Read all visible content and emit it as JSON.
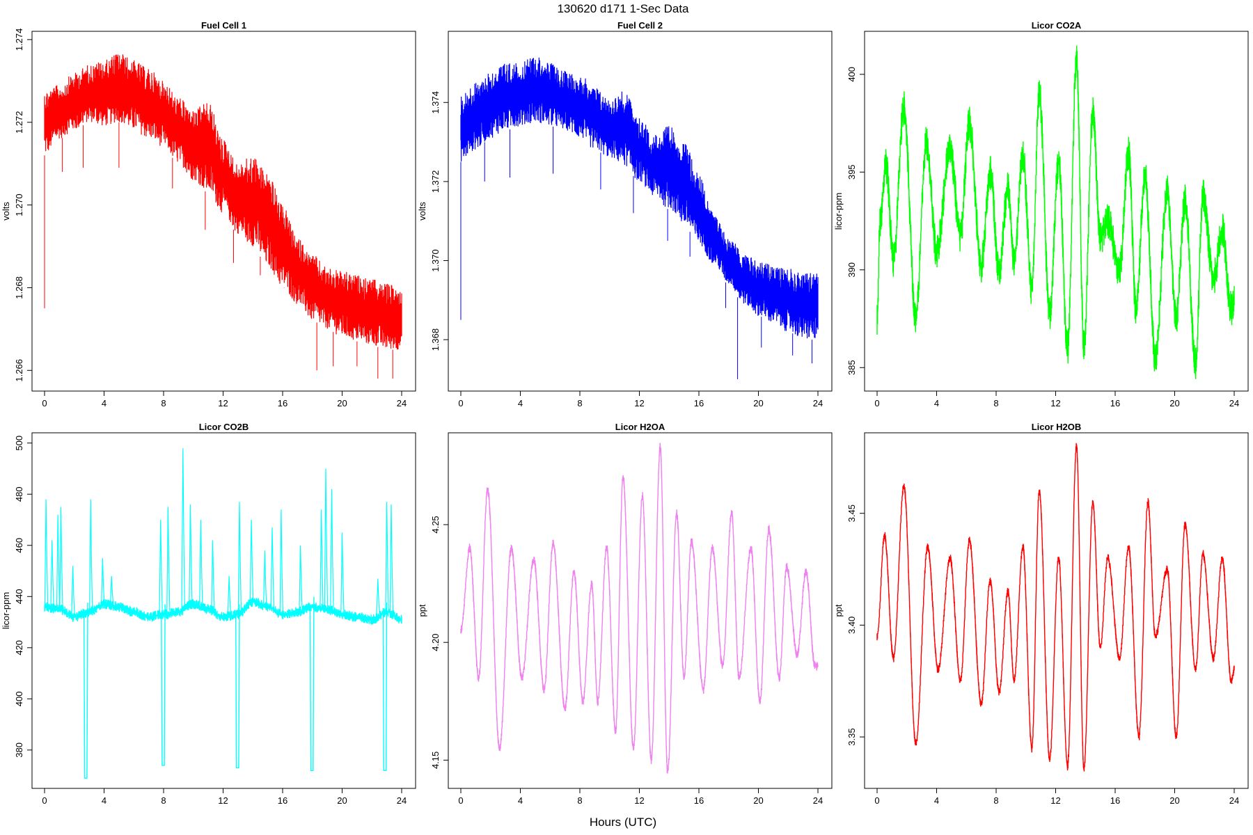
{
  "figure": {
    "title": "130620   d171   1-Sec Data",
    "xlabel": "Hours (UTC)"
  },
  "chart_data": [
    {
      "type": "line",
      "title": "Fuel Cell 1",
      "xlabel": "Hours (UTC)",
      "ylabel": "volts",
      "color": "#ff0000",
      "xlim": [
        0,
        24
      ],
      "ylim": [
        1.2655,
        1.2742
      ],
      "xticks": [
        0,
        4,
        8,
        12,
        16,
        20,
        24
      ],
      "yticks": [
        1.266,
        1.268,
        1.27,
        1.272,
        1.274
      ],
      "ytick_labels": [
        "1.266",
        "1.268",
        "1.270",
        "1.272",
        "1.274"
      ],
      "x": [
        0,
        1,
        2,
        3,
        4,
        5,
        6,
        7,
        8,
        9,
        10,
        11,
        12,
        13,
        14,
        15,
        16,
        17,
        18,
        19,
        20,
        21,
        22,
        23,
        24
      ],
      "y_low": [
        1.2712,
        1.2716,
        1.2718,
        1.272,
        1.2719,
        1.272,
        1.2718,
        1.2716,
        1.2714,
        1.271,
        1.2706,
        1.2703,
        1.2698,
        1.2693,
        1.269,
        1.2685,
        1.268,
        1.2676,
        1.2672,
        1.267,
        1.2668,
        1.2667,
        1.2666,
        1.2665,
        1.2665
      ],
      "y_high": [
        1.2728,
        1.2729,
        1.2732,
        1.2734,
        1.2735,
        1.2737,
        1.2735,
        1.2733,
        1.273,
        1.2726,
        1.2723,
        1.2725,
        1.2716,
        1.271,
        1.2712,
        1.2708,
        1.27,
        1.2692,
        1.2688,
        1.2685,
        1.2684,
        1.2683,
        1.2682,
        1.2681,
        1.268
      ],
      "spikes": [
        [
          0.0,
          1.2675
        ],
        [
          1.2,
          1.2708
        ],
        [
          2.6,
          1.2709
        ],
        [
          5.0,
          1.2709
        ],
        [
          8.6,
          1.2704
        ],
        [
          10.8,
          1.2694
        ],
        [
          12.7,
          1.2686
        ],
        [
          14.5,
          1.2683
        ],
        [
          16.1,
          1.268
        ],
        [
          18.3,
          1.266
        ],
        [
          19.4,
          1.2661
        ],
        [
          21.0,
          1.2661
        ],
        [
          22.4,
          1.2658
        ],
        [
          23.4,
          1.2658
        ]
      ]
    },
    {
      "type": "line",
      "title": "Fuel Cell 2",
      "xlabel": "Hours (UTC)",
      "ylabel": "volts",
      "color": "#0000ff",
      "xlim": [
        0,
        24
      ],
      "ylim": [
        1.3667,
        1.3758
      ],
      "xticks": [
        0,
        4,
        8,
        12,
        16,
        20,
        24
      ],
      "yticks": [
        1.368,
        1.37,
        1.372,
        1.374
      ],
      "ytick_labels": [
        "1.368",
        "1.370",
        "1.372",
        "1.374"
      ],
      "x": [
        0,
        1,
        2,
        3,
        4,
        5,
        6,
        7,
        8,
        9,
        10,
        11,
        12,
        13,
        14,
        15,
        16,
        17,
        18,
        19,
        20,
        21,
        22,
        23,
        24
      ],
      "y_low": [
        1.3725,
        1.3728,
        1.3731,
        1.3733,
        1.3734,
        1.3735,
        1.3734,
        1.3733,
        1.3731,
        1.3728,
        1.3726,
        1.3724,
        1.372,
        1.3716,
        1.3713,
        1.3709,
        1.3704,
        1.3699,
        1.3694,
        1.3689,
        1.3686,
        1.3684,
        1.3682,
        1.368,
        1.368
      ],
      "y_high": [
        1.3742,
        1.3745,
        1.3748,
        1.375,
        1.375,
        1.3752,
        1.375,
        1.3748,
        1.3747,
        1.3744,
        1.3741,
        1.3743,
        1.3736,
        1.3732,
        1.3734,
        1.373,
        1.3722,
        1.3712,
        1.3706,
        1.3702,
        1.37,
        1.3699,
        1.3698,
        1.3697,
        1.3697
      ],
      "spikes": [
        [
          0.0,
          1.3685
        ],
        [
          1.6,
          1.372
        ],
        [
          3.3,
          1.3721
        ],
        [
          6.2,
          1.3722
        ],
        [
          9.4,
          1.3718
        ],
        [
          11.6,
          1.3712
        ],
        [
          13.9,
          1.3705
        ],
        [
          15.4,
          1.3701
        ],
        [
          17.8,
          1.3688
        ],
        [
          18.6,
          1.367
        ],
        [
          20.2,
          1.3678
        ],
        [
          22.3,
          1.3676
        ],
        [
          23.6,
          1.3674
        ]
      ]
    },
    {
      "type": "line",
      "title": "Licor CO2A",
      "xlabel": "Hours (UTC)",
      "ylabel": "licor-ppm",
      "color": "#00ff00",
      "xlim": [
        0,
        24
      ],
      "ylim": [
        383.8,
        402.2
      ],
      "xticks": [
        0,
        4,
        8,
        12,
        16,
        20,
        24
      ],
      "yticks": [
        385,
        390,
        395,
        400
      ],
      "ytick_labels": [
        "385",
        "390",
        "395",
        "400"
      ],
      "x": [
        0,
        0.2,
        0.6,
        1.1,
        1.8,
        2.6,
        3.3,
        4.0,
        4.9,
        5.6,
        6.2,
        7.0,
        7.6,
        8.2,
        8.8,
        9.2,
        9.8,
        10.4,
        10.9,
        11.6,
        12.2,
        12.8,
        13.4,
        13.9,
        14.5,
        15.0,
        15.5,
        16.3,
        16.9,
        17.4,
        18.0,
        18.7,
        19.5,
        20.1,
        20.7,
        21.4,
        21.9,
        22.6,
        23.2,
        23.8,
        24.0
      ],
      "y": [
        387.5,
        392.5,
        395.3,
        390.5,
        398.3,
        387.5,
        396.5,
        391.0,
        396.2,
        391.8,
        397.5,
        390.2,
        395.0,
        390.0,
        394.2,
        390.5,
        395.8,
        389.0,
        399.0,
        387.8,
        395.5,
        386.0,
        400.8,
        386.2,
        398.0,
        391.5,
        392.5,
        390.0,
        396.0,
        388.0,
        394.8,
        385.5,
        394.0,
        387.5,
        393.5,
        385.2,
        393.8,
        389.5,
        392.0,
        388.0,
        388.5
      ],
      "noise": 0.9
    },
    {
      "type": "line",
      "title": "Licor CO2B",
      "xlabel": "Hours (UTC)",
      "ylabel": "licor-ppm",
      "color": "#00ffff",
      "xlim": [
        0,
        24
      ],
      "ylim": [
        365,
        504
      ],
      "xticks": [
        0,
        4,
        8,
        12,
        16,
        20,
        24
      ],
      "yticks": [
        380,
        400,
        420,
        440,
        460,
        480,
        500
      ],
      "ytick_labels": [
        "380",
        "400",
        "420",
        "440",
        "460",
        "480",
        "500"
      ],
      "baseline_x": [
        0,
        1,
        2,
        3,
        4,
        5,
        6,
        7,
        8,
        9,
        10,
        11,
        12,
        13,
        14,
        15,
        16,
        17,
        18,
        19,
        20,
        21,
        22,
        23,
        24
      ],
      "baseline_y": [
        436,
        435,
        432,
        434,
        437,
        436,
        434,
        432,
        433,
        434,
        437,
        435,
        432,
        433,
        438,
        436,
        433,
        434,
        436,
        435,
        433,
        432,
        431,
        434,
        431
      ],
      "spikes": [
        [
          0.1,
          478
        ],
        [
          0.5,
          462
        ],
        [
          0.9,
          472
        ],
        [
          1.1,
          475
        ],
        [
          1.9,
          452
        ],
        [
          3.1,
          478
        ],
        [
          3.9,
          455
        ],
        [
          4.5,
          448
        ],
        [
          7.8,
          470
        ],
        [
          8.3,
          475
        ],
        [
          9.3,
          498
        ],
        [
          9.8,
          476
        ],
        [
          10.5,
          470
        ],
        [
          11.3,
          462
        ],
        [
          12.4,
          448
        ],
        [
          13.1,
          477
        ],
        [
          13.9,
          470
        ],
        [
          14.8,
          458
        ],
        [
          15.3,
          467
        ],
        [
          15.9,
          474
        ],
        [
          17.2,
          460
        ],
        [
          18.6,
          474
        ],
        [
          18.9,
          490
        ],
        [
          19.3,
          482
        ],
        [
          20.0,
          465
        ],
        [
          22.4,
          447
        ],
        [
          23.0,
          477
        ],
        [
          23.3,
          476
        ]
      ],
      "dips": [
        [
          2.7,
          369
        ],
        [
          7.9,
          374
        ],
        [
          12.9,
          373
        ],
        [
          17.9,
          372
        ],
        [
          22.8,
          372
        ]
      ]
    },
    {
      "type": "line",
      "title": "Licor H2OA",
      "xlabel": "Hours (UTC)",
      "ylabel": "ppt",
      "color": "#ee82ee",
      "xlim": [
        0,
        24
      ],
      "ylim": [
        4.138,
        4.289
      ],
      "xticks": [
        0,
        4,
        8,
        12,
        16,
        20,
        24
      ],
      "yticks": [
        4.15,
        4.2,
        4.25
      ],
      "ytick_labels": [
        "4.15",
        "4.20",
        "4.25"
      ],
      "x": [
        0,
        0.6,
        1.2,
        1.8,
        2.6,
        3.4,
        4.1,
        4.9,
        5.6,
        6.2,
        7.0,
        7.6,
        8.2,
        8.8,
        9.2,
        9.8,
        10.4,
        10.9,
        11.6,
        12.2,
        12.8,
        13.4,
        13.9,
        14.5,
        15.0,
        15.5,
        16.3,
        16.9,
        17.6,
        18.2,
        18.7,
        19.5,
        20.1,
        20.7,
        21.4,
        21.9,
        22.6,
        23.2,
        23.8,
        24.0
      ],
      "y": [
        4.205,
        4.24,
        4.185,
        4.265,
        4.155,
        4.24,
        4.185,
        4.235,
        4.18,
        4.242,
        4.172,
        4.23,
        4.175,
        4.225,
        4.175,
        4.24,
        4.162,
        4.27,
        4.155,
        4.262,
        4.15,
        4.283,
        4.145,
        4.255,
        4.185,
        4.243,
        4.18,
        4.24,
        4.19,
        4.255,
        4.185,
        4.24,
        4.175,
        4.248,
        4.185,
        4.232,
        4.195,
        4.23,
        4.19,
        4.19
      ],
      "noise": 0.002
    },
    {
      "type": "line",
      "title": "Licor H2OB",
      "xlabel": "Hours (UTC)",
      "ylabel": "ppt",
      "color": "#ff0000",
      "xlim": [
        0,
        24
      ],
      "ylim": [
        3.327,
        3.486
      ],
      "xticks": [
        0,
        4,
        8,
        12,
        16,
        20,
        24
      ],
      "yticks": [
        3.35,
        3.4,
        3.45
      ],
      "ytick_labels": [
        "3.35",
        "3.40",
        "3.45"
      ],
      "x": [
        0,
        0.5,
        1.1,
        1.8,
        2.6,
        3.4,
        4.1,
        4.9,
        5.6,
        6.2,
        7.0,
        7.6,
        8.2,
        8.8,
        9.2,
        9.8,
        10.4,
        10.9,
        11.6,
        12.2,
        12.8,
        13.4,
        13.9,
        14.5,
        15.0,
        15.5,
        16.3,
        16.9,
        17.6,
        18.2,
        18.7,
        19.5,
        20.1,
        20.7,
        21.4,
        21.9,
        22.6,
        23.2,
        23.8,
        24.0
      ],
      "y": [
        3.395,
        3.44,
        3.385,
        3.462,
        3.347,
        3.435,
        3.38,
        3.43,
        3.375,
        3.438,
        3.365,
        3.42,
        3.37,
        3.415,
        3.375,
        3.435,
        3.345,
        3.46,
        3.34,
        3.43,
        3.337,
        3.48,
        3.336,
        3.455,
        3.39,
        3.43,
        3.385,
        3.435,
        3.35,
        3.455,
        3.395,
        3.425,
        3.35,
        3.445,
        3.38,
        3.432,
        3.385,
        3.43,
        3.375,
        3.38
      ],
      "noise": 0.002
    }
  ]
}
